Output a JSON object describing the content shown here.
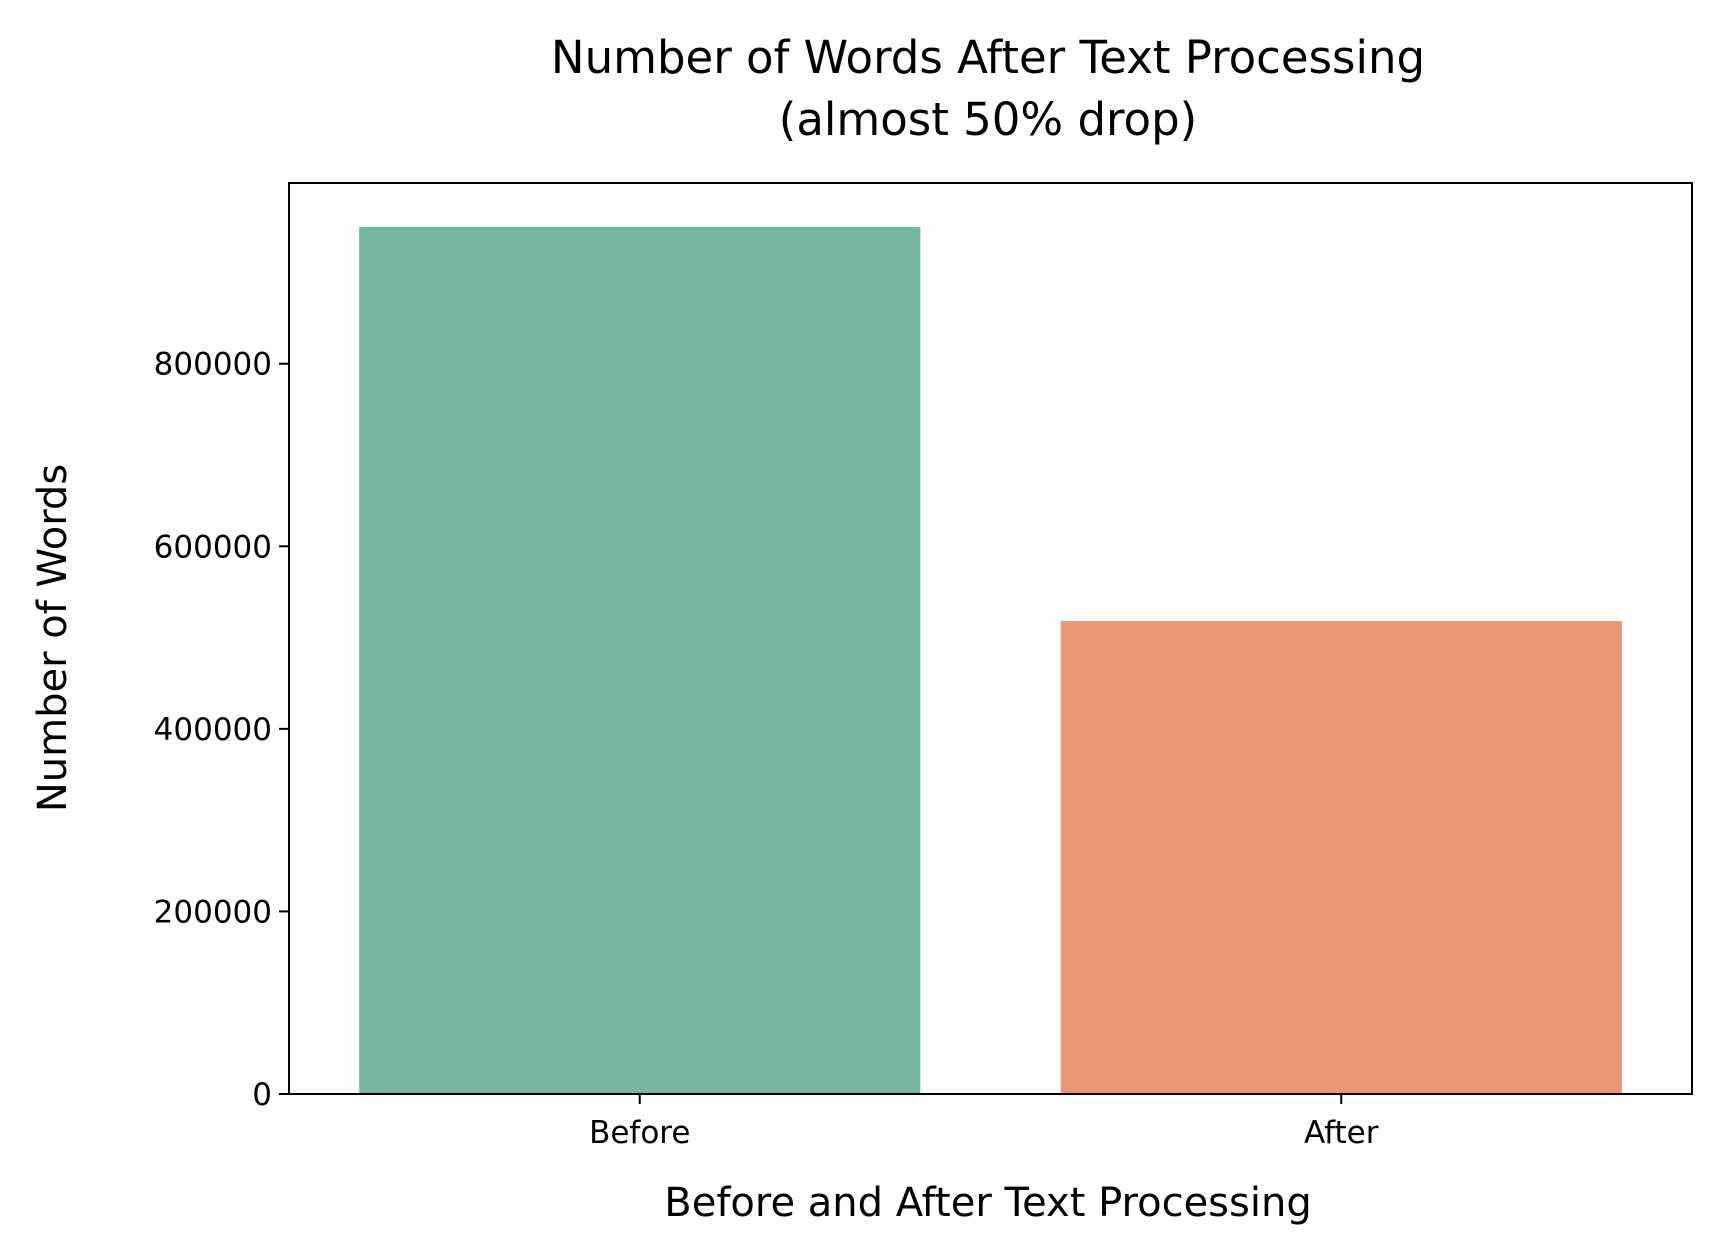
{
  "chart_data": {
    "type": "bar",
    "title_lines": [
      "Number of Words After Text Processing",
      "(almost 50% drop)"
    ],
    "xlabel": "Before and After Text Processing",
    "ylabel": "Number of Words",
    "categories": [
      "Before",
      "After"
    ],
    "values": [
      950000,
      518000
    ],
    "colors": [
      "#76b5a0",
      "#e99675"
    ],
    "ylim": [
      0,
      998000
    ],
    "yticks": [
      0,
      200000,
      400000,
      600000,
      800000
    ],
    "ytick_labels": [
      "0",
      "200000",
      "400000",
      "600000",
      "800000"
    ],
    "grid": false,
    "legend": "none"
  }
}
